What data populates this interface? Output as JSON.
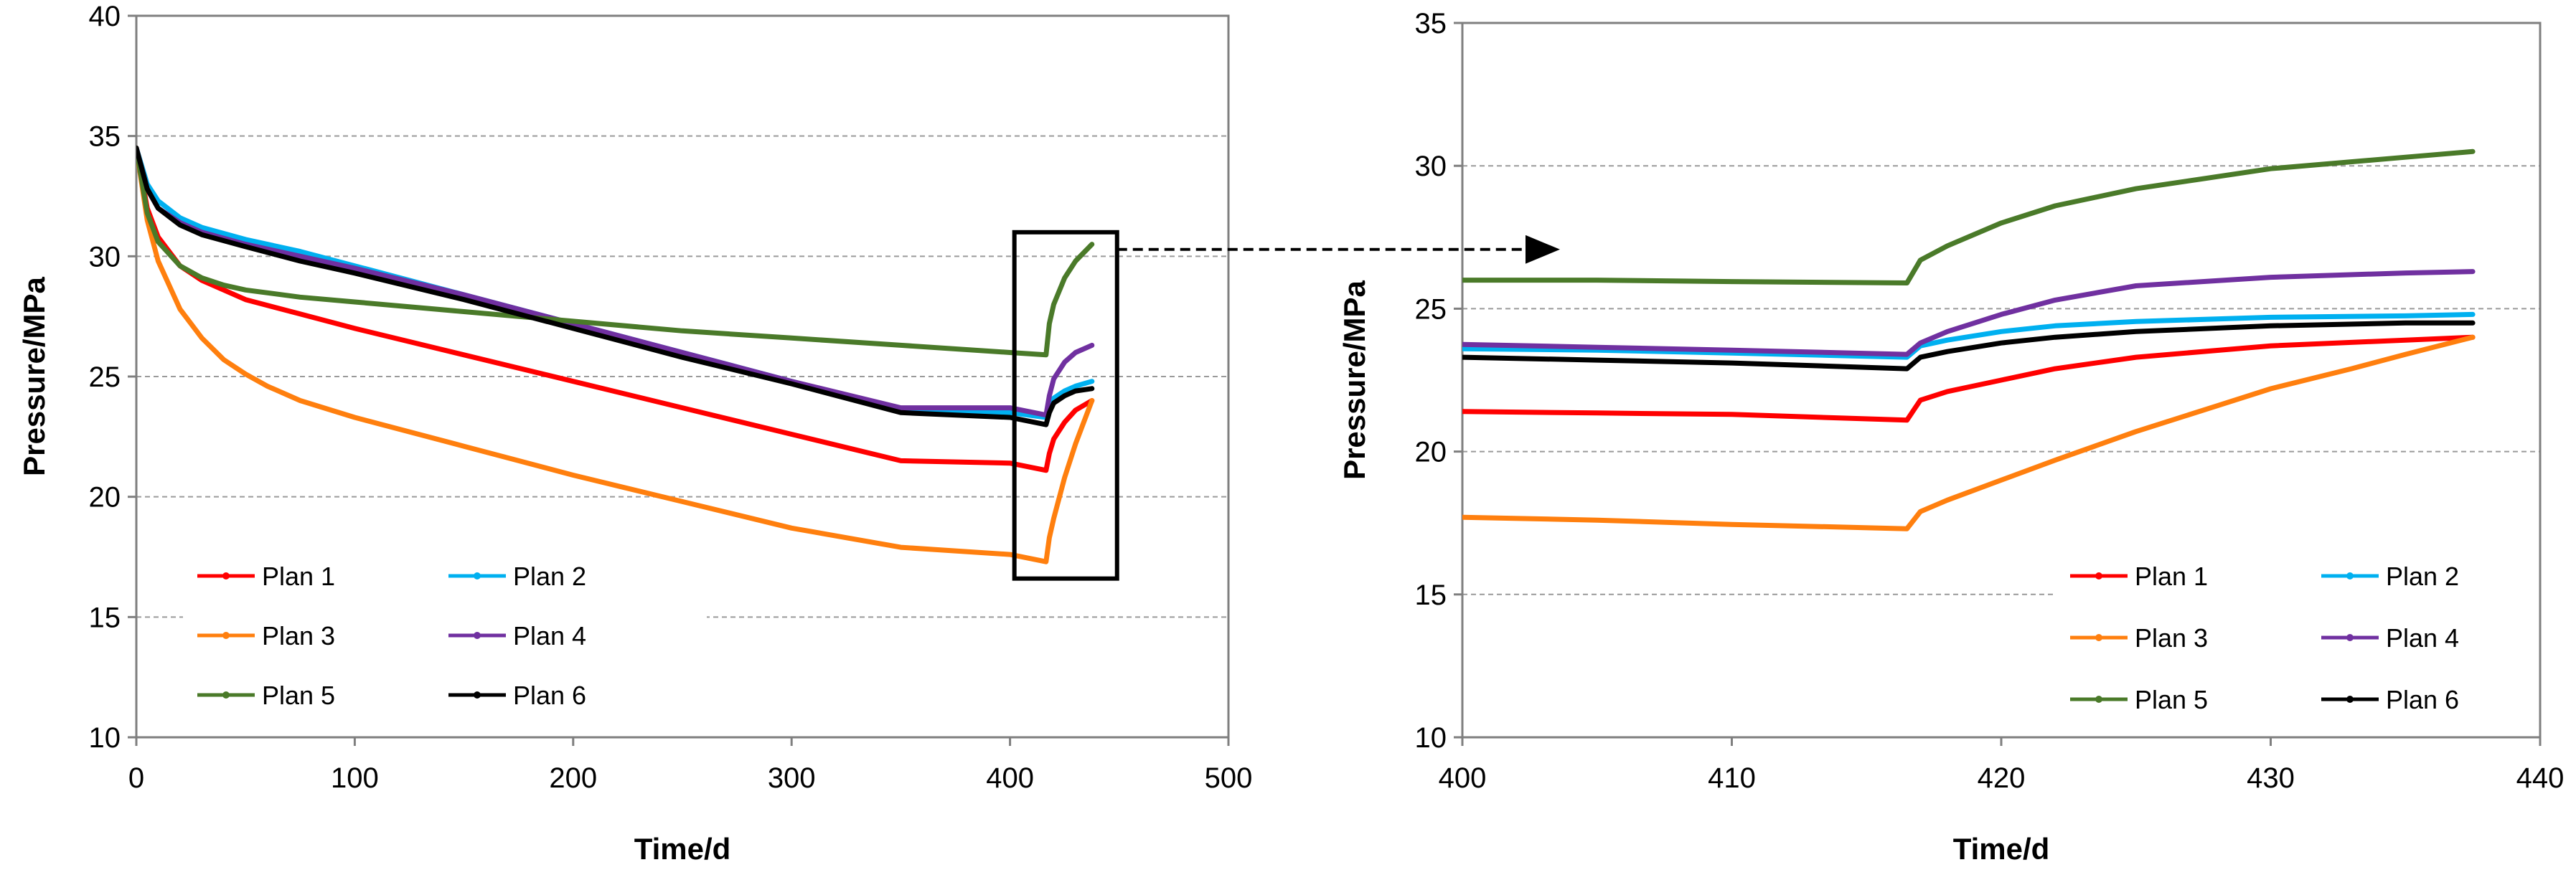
{
  "chart_data": [
    {
      "type": "line",
      "title": "",
      "xlabel": "Time/d",
      "ylabel": "Pressure/MPa",
      "xlim": [
        0,
        500
      ],
      "ylim": [
        10,
        40
      ],
      "xticks": [
        0,
        100,
        200,
        300,
        400,
        500
      ],
      "yticks": [
        10,
        15,
        20,
        25,
        30,
        35,
        40
      ],
      "xtick_labels": [
        "0",
        "100",
        "200",
        "300",
        "400",
        "500"
      ],
      "ytick_labels": [
        "10",
        "15",
        "20",
        "25",
        "30",
        "35",
        "40"
      ],
      "grid": "horizontal-dashed",
      "legend": "bottom-left",
      "annotation": "rectangle around x 402-449, y 16.6-31.0 with dashed arrow to zoomed panel",
      "series": [
        {
          "name": "Plan 1",
          "color": "#ff0000",
          "x": [
            0,
            5,
            10,
            20,
            30,
            50,
            75,
            100,
            150,
            200,
            250,
            300,
            350,
            400,
            416.5,
            418,
            420,
            425,
            430,
            437.5
          ],
          "y": [
            34.5,
            32.0,
            30.8,
            29.6,
            29.0,
            28.2,
            27.6,
            27.0,
            25.9,
            24.8,
            23.7,
            22.6,
            21.5,
            21.4,
            21.1,
            21.8,
            22.4,
            23.1,
            23.6,
            24.0
          ]
        },
        {
          "name": "Plan 2",
          "color": "#00b0f0",
          "x": [
            0,
            5,
            10,
            20,
            30,
            50,
            75,
            100,
            150,
            200,
            250,
            300,
            350,
            400,
            416.5,
            418,
            420,
            425,
            430,
            437.5
          ],
          "y": [
            34.5,
            33.0,
            32.3,
            31.6,
            31.2,
            30.7,
            30.2,
            29.6,
            28.4,
            27.2,
            26.0,
            24.8,
            23.6,
            23.5,
            23.3,
            23.8,
            24.1,
            24.4,
            24.6,
            24.8
          ]
        },
        {
          "name": "Plan 3",
          "color": "#ff7f0e",
          "x": [
            0,
            5,
            10,
            20,
            30,
            40,
            50,
            60,
            75,
            100,
            150,
            200,
            250,
            300,
            350,
            400,
            416.5,
            418,
            420,
            425,
            430,
            437.5
          ],
          "y": [
            34.5,
            31.5,
            29.8,
            27.8,
            26.6,
            25.7,
            25.1,
            24.6,
            24.0,
            23.3,
            22.1,
            20.9,
            19.8,
            18.7,
            17.9,
            17.6,
            17.3,
            18.3,
            19.1,
            20.8,
            22.2,
            24.0
          ]
        },
        {
          "name": "Plan 4",
          "color": "#7030a0",
          "x": [
            0,
            5,
            10,
            20,
            30,
            50,
            75,
            100,
            150,
            200,
            250,
            300,
            350,
            400,
            416.5,
            418,
            420,
            425,
            430,
            437.5
          ],
          "y": [
            34.5,
            32.8,
            32.0,
            31.4,
            31.0,
            30.5,
            30.0,
            29.5,
            28.4,
            27.2,
            26.0,
            24.8,
            23.7,
            23.7,
            23.4,
            24.2,
            24.9,
            25.6,
            26.0,
            26.3
          ]
        },
        {
          "name": "Plan 5",
          "color": "#4a7a29",
          "x": [
            0,
            5,
            10,
            20,
            30,
            40,
            50,
            75,
            100,
            150,
            200,
            250,
            300,
            350,
            400,
            416.5,
            418,
            420,
            425,
            430,
            437.5
          ],
          "y": [
            34.5,
            31.8,
            30.6,
            29.6,
            29.1,
            28.8,
            28.6,
            28.3,
            28.1,
            27.7,
            27.3,
            26.9,
            26.6,
            26.3,
            26.0,
            25.9,
            27.2,
            28.0,
            29.1,
            29.8,
            30.5
          ]
        },
        {
          "name": "Plan 6",
          "color": "#000000",
          "x": [
            0,
            5,
            10,
            20,
            30,
            50,
            75,
            100,
            150,
            200,
            250,
            300,
            350,
            400,
            416.5,
            418,
            420,
            425,
            430,
            437.5
          ],
          "y": [
            34.5,
            32.8,
            32.0,
            31.3,
            30.9,
            30.4,
            29.8,
            29.3,
            28.2,
            27.0,
            25.8,
            24.7,
            23.5,
            23.3,
            23.0,
            23.5,
            23.9,
            24.2,
            24.4,
            24.5
          ]
        }
      ]
    },
    {
      "type": "line",
      "title": "",
      "xlabel": "Time/d",
      "ylabel": "Pressure/MPa",
      "xlim": [
        400,
        440
      ],
      "ylim": [
        10,
        35
      ],
      "xticks": [
        400,
        410,
        420,
        430,
        440
      ],
      "yticks": [
        10,
        15,
        20,
        25,
        30,
        35
      ],
      "xtick_labels": [
        "400",
        "410",
        "420",
        "430",
        "440"
      ],
      "ytick_labels": [
        "10",
        "15",
        "20",
        "25",
        "30",
        "35"
      ],
      "grid": "horizontal-dashed",
      "legend": "bottom-right",
      "series": [
        {
          "name": "Plan 1",
          "color": "#ff0000",
          "x": [
            400,
            405,
            410,
            416.5,
            417,
            418,
            420,
            422,
            425,
            430,
            435,
            437.5
          ],
          "y": [
            21.4,
            21.35,
            21.3,
            21.1,
            21.8,
            22.1,
            22.5,
            22.9,
            23.3,
            23.7,
            23.9,
            24.0
          ]
        },
        {
          "name": "Plan 2",
          "color": "#00b0f0",
          "x": [
            400,
            405,
            410,
            416.5,
            417,
            418,
            420,
            422,
            425,
            430,
            435,
            437.5
          ],
          "y": [
            23.6,
            23.55,
            23.45,
            23.3,
            23.7,
            23.9,
            24.2,
            24.4,
            24.55,
            24.7,
            24.75,
            24.8
          ]
        },
        {
          "name": "Plan 3",
          "color": "#ff7f0e",
          "x": [
            400,
            405,
            410,
            416.5,
            417,
            418,
            420,
            422,
            425,
            428,
            430,
            433,
            435,
            437.5
          ],
          "y": [
            17.7,
            17.6,
            17.45,
            17.3,
            17.9,
            18.3,
            19.0,
            19.7,
            20.7,
            21.6,
            22.2,
            22.9,
            23.4,
            24.0
          ]
        },
        {
          "name": "Plan 4",
          "color": "#7030a0",
          "x": [
            400,
            405,
            410,
            416.5,
            417,
            418,
            420,
            422,
            425,
            430,
            435,
            437.5
          ],
          "y": [
            23.75,
            23.65,
            23.55,
            23.4,
            23.8,
            24.2,
            24.8,
            25.3,
            25.8,
            26.1,
            26.25,
            26.3
          ]
        },
        {
          "name": "Plan 5",
          "color": "#4a7a29",
          "x": [
            400,
            405,
            410,
            416.5,
            417,
            418,
            420,
            422,
            425,
            430,
            435,
            437.5
          ],
          "y": [
            26.0,
            26.0,
            25.95,
            25.9,
            26.7,
            27.2,
            28.0,
            28.6,
            29.2,
            29.9,
            30.3,
            30.5
          ]
        },
        {
          "name": "Plan 6",
          "color": "#000000",
          "x": [
            400,
            405,
            410,
            416.5,
            417,
            418,
            420,
            422,
            425,
            430,
            435,
            437.5
          ],
          "y": [
            23.3,
            23.2,
            23.1,
            22.9,
            23.3,
            23.5,
            23.8,
            24.0,
            24.2,
            24.4,
            24.5,
            24.5
          ]
        }
      ]
    }
  ]
}
